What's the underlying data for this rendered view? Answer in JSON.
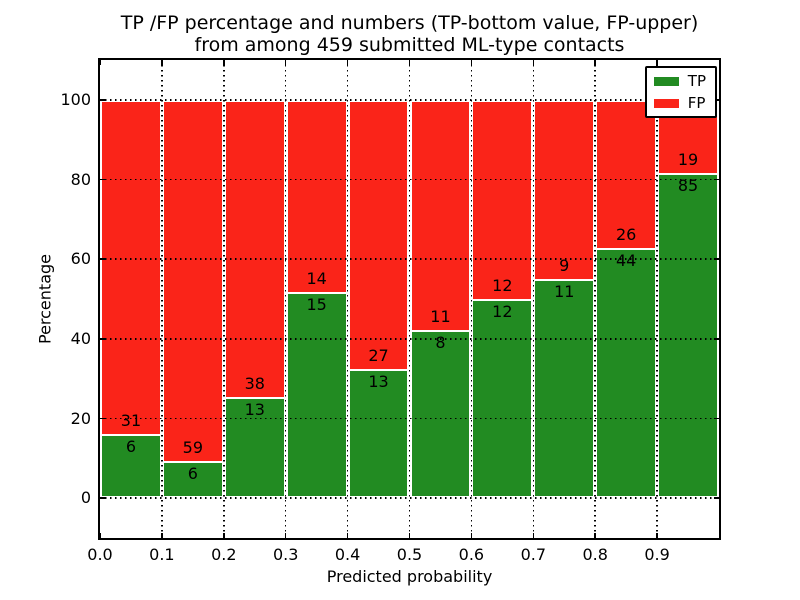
{
  "chart_data": {
    "type": "bar",
    "stacked": true,
    "title": "TP /FP percentage and numbers (TP-bottom value, FP-upper) from among 459 submitted ML-type contacts",
    "title_line1": "TP /FP percentage and numbers (TP-bottom value, FP-upper)",
    "title_line2": "from among 459 submitted ML-type contacts",
    "xlabel": "Predicted probability",
    "ylabel": "Percentage",
    "xlim": [
      0.0,
      1.0
    ],
    "ylim": [
      -10,
      110
    ],
    "xticks": [
      "0.0",
      "0.1",
      "0.2",
      "0.3",
      "0.4",
      "0.5",
      "0.6",
      "0.7",
      "0.8",
      "0.9"
    ],
    "yticks": [
      0,
      20,
      40,
      60,
      80,
      100
    ],
    "grid": "dotted",
    "legend_position": "upper right",
    "bin_width": 0.1,
    "categories": [
      "0.0-0.1",
      "0.1-0.2",
      "0.2-0.3",
      "0.3-0.4",
      "0.4-0.5",
      "0.5-0.6",
      "0.6-0.7",
      "0.7-0.8",
      "0.8-0.9",
      "0.9-1.0"
    ],
    "series": [
      {
        "name": "TP",
        "color": "#228b22",
        "counts": [
          6,
          6,
          13,
          15,
          13,
          8,
          12,
          11,
          44,
          85
        ],
        "pct": [
          16.22,
          9.23,
          25.49,
          51.72,
          32.5,
          42.11,
          50.0,
          55.0,
          62.86,
          81.73
        ]
      },
      {
        "name": "FP",
        "color": "#fa2419",
        "counts": [
          31,
          59,
          38,
          14,
          27,
          11,
          12,
          9,
          26,
          19
        ],
        "pct": [
          83.78,
          90.77,
          74.51,
          48.28,
          67.5,
          57.89,
          50.0,
          45.0,
          37.14,
          18.27
        ]
      }
    ]
  }
}
